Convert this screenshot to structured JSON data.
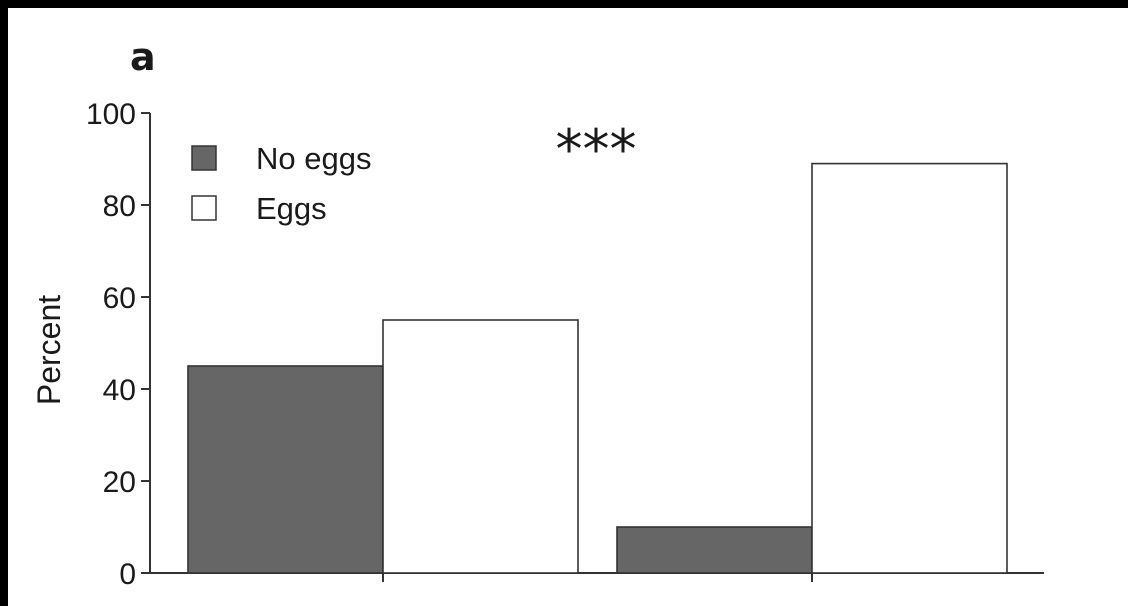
{
  "panel_label": "a",
  "annotation": "***",
  "colors": {
    "no_eggs": "#666666",
    "eggs": "#ffffff",
    "axis": "#333333",
    "frame": "#000000"
  },
  "chart_data": {
    "type": "bar",
    "ylabel": "Percent",
    "ylim": [
      0,
      100
    ],
    "yticks": [
      0,
      20,
      40,
      60,
      80,
      100
    ],
    "legend_position": "top-left",
    "groups": 2,
    "series": [
      {
        "name": "No eggs",
        "values": [
          45,
          10
        ]
      },
      {
        "name": "Eggs",
        "values": [
          55,
          89
        ]
      }
    ]
  }
}
